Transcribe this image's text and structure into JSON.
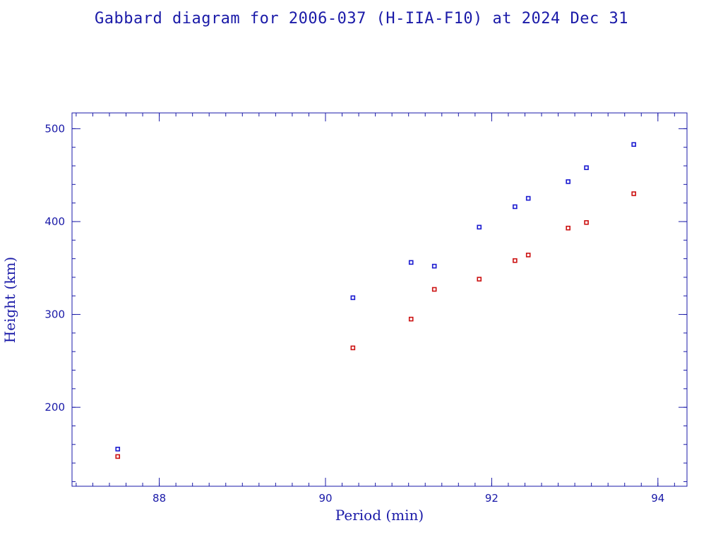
{
  "chart_data": {
    "type": "scatter",
    "title": "Gabbard diagram for 2006-037 (H-IIA-F10) at 2024 Dec 31",
    "xlabel": "Period (min)",
    "ylabel": "Height (km)",
    "xlim": [
      86.95,
      94.35
    ],
    "ylim": [
      115,
      517
    ],
    "xticks": [
      88,
      90,
      92,
      94
    ],
    "yticks": [
      200,
      300,
      400,
      500
    ],
    "xminor_step": 0.2,
    "yminor_step": 20,
    "grid": false,
    "legend": "none",
    "series": [
      {
        "role": "apogee",
        "color": "#1a1ad0",
        "x": [
          87.5,
          90.33,
          91.03,
          91.31,
          91.85,
          92.28,
          92.44,
          92.92,
          93.14,
          93.71
        ],
        "y": [
          155,
          318,
          356,
          352,
          394,
          416,
          425,
          443,
          458,
          483
        ]
      },
      {
        "role": "perigee",
        "color": "#cc1111",
        "x": [
          87.5,
          90.33,
          91.03,
          91.31,
          91.85,
          92.28,
          92.44,
          92.92,
          93.14,
          93.71
        ],
        "y": [
          147,
          264,
          295,
          327,
          338,
          358,
          364,
          393,
          399,
          430
        ]
      }
    ]
  }
}
